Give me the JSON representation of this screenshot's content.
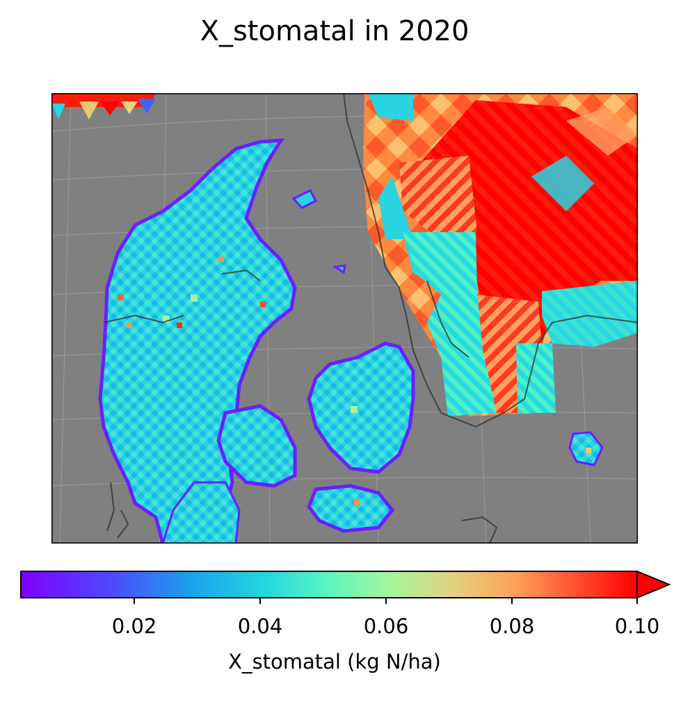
{
  "title": "X_stomatal in 2020",
  "colorbar": {
    "label": "X_stomatal (kg N/ha)",
    "ticks": [
      "0.02",
      "0.04",
      "0.06",
      "0.08",
      "0.10"
    ],
    "range": [
      0.002,
      0.1
    ],
    "extend": "max",
    "colormap": "rainbow"
  },
  "map": {
    "region": "Denmark and southern Sweden",
    "background_color": "#808080",
    "coastline_color": "#333333",
    "gridlines": true,
    "dominant_values": {
      "denmark": "0.02-0.05",
      "southern_sweden_north": ">=0.10",
      "southern_sweden_coast": "0.03-0.04",
      "bornholm": "0.03-0.06"
    }
  }
}
